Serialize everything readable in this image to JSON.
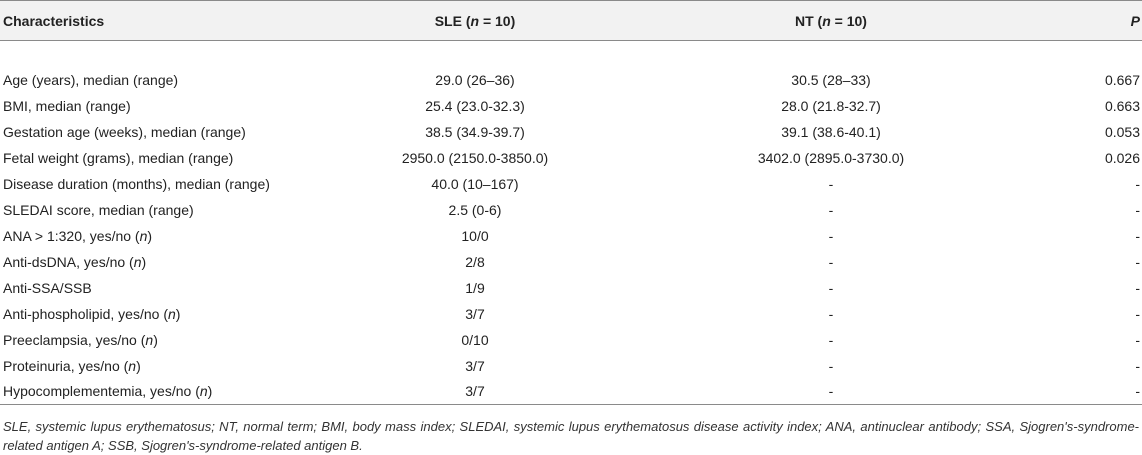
{
  "table": {
    "headers": {
      "characteristics": "Characteristics",
      "sle": {
        "prefix": "SLE (",
        "n": "n",
        "suffix": " = 10)"
      },
      "nt": {
        "prefix": "NT (",
        "n": "n",
        "suffix": " = 10)"
      },
      "p": "P"
    },
    "rows": [
      {
        "label": "Age (years), median (range)",
        "label_n": "",
        "label_tail": "",
        "sle": "29.0 (26–36)",
        "nt": "30.5 (28–33)",
        "p": "0.667"
      },
      {
        "label": "BMI, median (range)",
        "label_n": "",
        "label_tail": "",
        "sle": "25.4 (23.0-32.3)",
        "nt": "28.0 (21.8-32.7)",
        "p": "0.663"
      },
      {
        "label": "Gestation age (weeks), median (range)",
        "label_n": "",
        "label_tail": "",
        "sle": "38.5 (34.9-39.7)",
        "nt": "39.1 (38.6-40.1)",
        "p": "0.053"
      },
      {
        "label": "Fetal weight (grams), median (range)",
        "label_n": "",
        "label_tail": "",
        "sle": "2950.0 (2150.0-3850.0)",
        "nt": "3402.0 (2895.0-3730.0)",
        "p": "0.026"
      },
      {
        "label": "Disease duration (months), median (range)",
        "label_n": "",
        "label_tail": "",
        "sle": "40.0 (10–167)",
        "nt": "-",
        "p": "-"
      },
      {
        "label": "SLEDAI score, median (range)",
        "label_n": "",
        "label_tail": "",
        "sle": "2.5 (0-6)",
        "nt": "-",
        "p": "-"
      },
      {
        "label": "ANA > 1:320, yes/no (",
        "label_n": "n",
        "label_tail": ")",
        "sle": "10/0",
        "nt": "-",
        "p": "-"
      },
      {
        "label": "Anti-dsDNA, yes/no (",
        "label_n": "n",
        "label_tail": ")",
        "sle": "2/8",
        "nt": "-",
        "p": "-"
      },
      {
        "label": "Anti-SSA/SSB",
        "label_n": "",
        "label_tail": "",
        "sle": "1/9",
        "nt": "-",
        "p": "-"
      },
      {
        "label": "Anti-phospholipid, yes/no (",
        "label_n": "n",
        "label_tail": ")",
        "sle": "3/7",
        "nt": "-",
        "p": "-"
      },
      {
        "label": "Preeclampsia, yes/no (",
        "label_n": "n",
        "label_tail": ")",
        "sle": "0/10",
        "nt": "-",
        "p": "-"
      },
      {
        "label": "Proteinuria, yes/no (",
        "label_n": "n",
        "label_tail": ")",
        "sle": "3/7",
        "nt": "-",
        "p": "-"
      },
      {
        "label": "Hypocomplementemia, yes/no (",
        "label_n": "n",
        "label_tail": ")",
        "sle": "3/7",
        "nt": "-",
        "p": "-"
      }
    ]
  },
  "footnote": "SLE, systemic lupus erythematosus; NT, normal term; BMI, body mass index; SLEDAI, systemic lupus erythematosus disease activity index; ANA, antinuclear antibody; SSA, Sjogren's-syndrome-related antigen A; SSB, Sjogren's-syndrome-related antigen B."
}
